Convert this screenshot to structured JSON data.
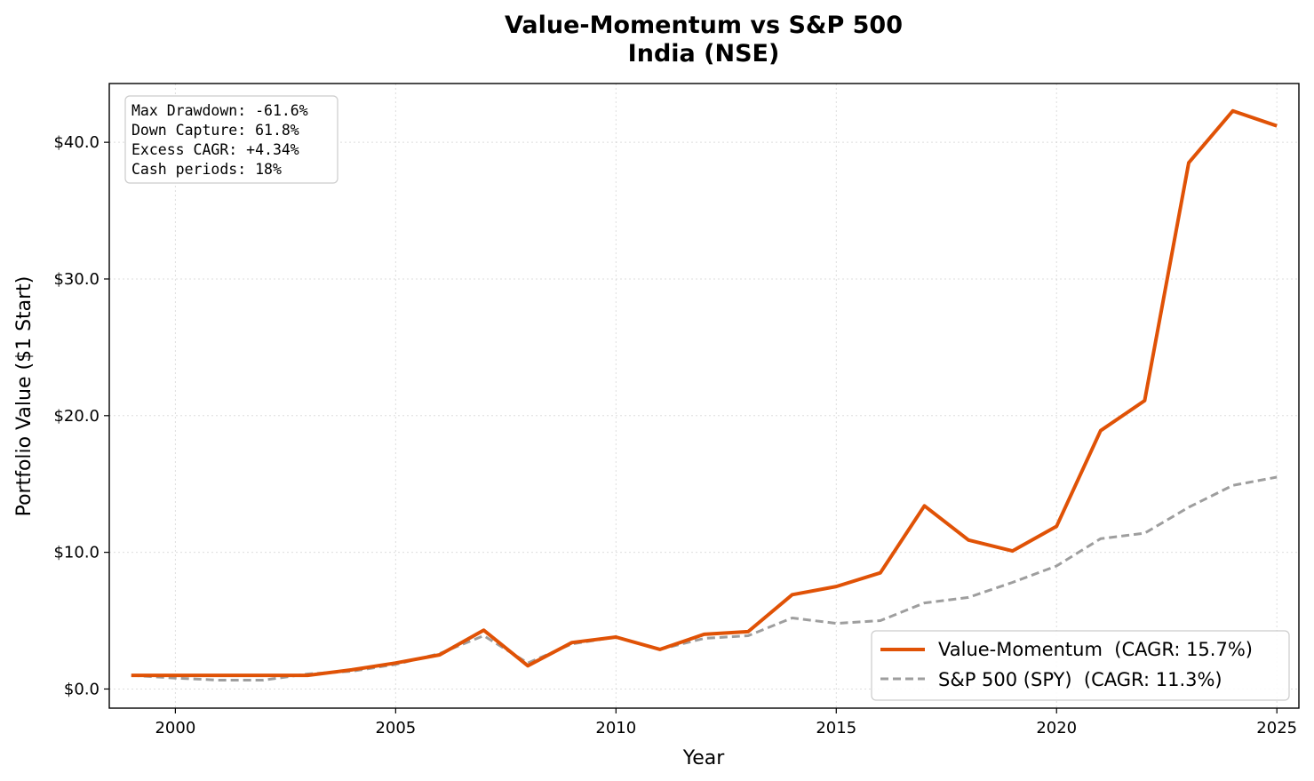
{
  "chart_data": {
    "type": "line",
    "title": "Value-Momentum vs S&P 500",
    "subtitle": "India (NSE)",
    "xlabel": "Year",
    "ylabel": "Portfolio Value ($1 Start)",
    "xlim": [
      1998.5,
      2025.5
    ],
    "ylim": [
      -1.4,
      44.3
    ],
    "x_ticks": [
      2000,
      2005,
      2010,
      2015,
      2020,
      2025
    ],
    "y_ticks": [
      0,
      10,
      20,
      30,
      40
    ],
    "y_tick_labels": [
      "$0.0",
      "$10.0",
      "$20.0",
      "$30.0",
      "$40.0"
    ],
    "grid": true,
    "legend_position": "lower-right",
    "x": [
      1999,
      2000,
      2001,
      2002,
      2003,
      2004,
      2005,
      2006,
      2007,
      2008,
      2009,
      2010,
      2011,
      2012,
      2013,
      2014,
      2015,
      2016,
      2017,
      2018,
      2019,
      2020,
      2021,
      2022,
      2023,
      2024,
      2025
    ],
    "series": [
      {
        "name": "Value-Momentum  (CAGR: 15.7%)",
        "color": "#e05206",
        "style": "solid",
        "values": [
          1.0,
          1.0,
          1.0,
          1.0,
          1.0,
          1.4,
          1.9,
          2.5,
          4.3,
          1.7,
          3.4,
          3.8,
          2.9,
          4.0,
          4.2,
          6.9,
          7.5,
          8.5,
          13.4,
          10.9,
          10.1,
          11.9,
          18.9,
          21.1,
          38.5,
          42.3,
          41.2
        ]
      },
      {
        "name": "S&P 500 (SPY)  (CAGR: 11.3%)",
        "color": "#9e9e9e",
        "style": "dashed",
        "values": [
          1.0,
          0.8,
          0.65,
          0.65,
          1.1,
          1.3,
          1.8,
          2.6,
          3.9,
          1.9,
          3.3,
          3.8,
          2.9,
          3.7,
          3.9,
          5.2,
          4.8,
          5.0,
          6.3,
          6.7,
          7.8,
          9.0,
          11.0,
          11.4,
          13.3,
          14.9,
          15.5
        ]
      }
    ],
    "stats_box": [
      "Max Drawdown: -61.6%",
      "Down Capture: 61.8%",
      "Excess CAGR: +4.34%",
      "Cash periods: 18%"
    ]
  }
}
